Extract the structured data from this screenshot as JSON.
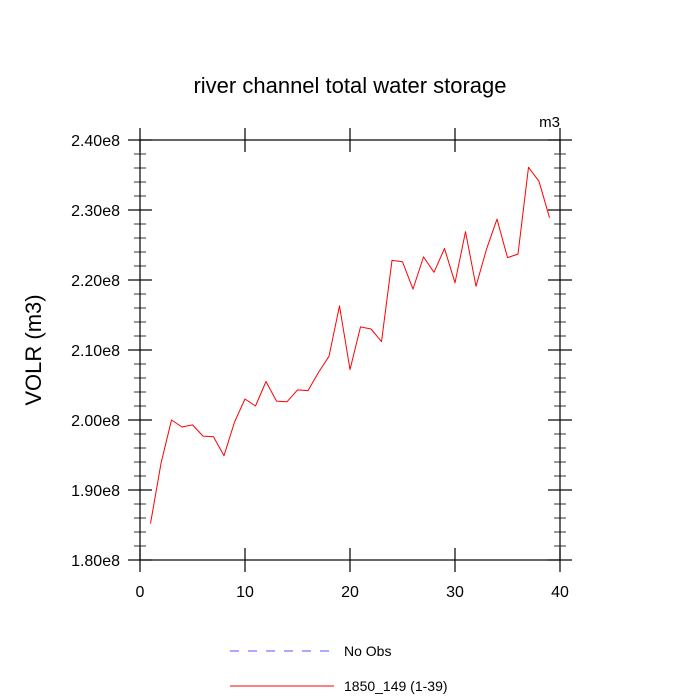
{
  "chart_data": {
    "type": "line",
    "title": "river channel total water storage",
    "units_label": "m3",
    "ylabel": "VOLR  (m3)",
    "xlabel": "",
    "xlim": [
      0,
      40
    ],
    "ylim": [
      180000000,
      240000000
    ],
    "x_ticks": [
      0,
      10,
      20,
      30,
      40
    ],
    "x_tick_labels": [
      "0",
      "10",
      "20",
      "30",
      "40"
    ],
    "y_ticks": [
      180000000,
      190000000,
      200000000,
      210000000,
      220000000,
      230000000,
      240000000
    ],
    "y_tick_labels": [
      "1.80e8",
      "1.90e8",
      "2.00e8",
      "2.10e8",
      "2.20e8",
      "2.30e8",
      "2.40e8"
    ],
    "grid": false,
    "legend_position": "bottom-center",
    "legend": [
      {
        "label": "No Obs",
        "color": "#5555ff",
        "style": "dashed"
      },
      {
        "label": "1850_149 (1-39)",
        "color": "#ff0000",
        "style": "solid"
      }
    ],
    "series": [
      {
        "name": "1850_149 (1-39)",
        "color": "#ff0000",
        "x": [
          1,
          2,
          3,
          4,
          5,
          6,
          7,
          8,
          9,
          10,
          11,
          12,
          13,
          14,
          15,
          16,
          17,
          18,
          19,
          20,
          21,
          22,
          23,
          24,
          25,
          26,
          27,
          28,
          29,
          30,
          31,
          32,
          33,
          34,
          35,
          36,
          37,
          38,
          39
        ],
        "values": [
          185200000,
          193800000,
          200000000,
          199000000,
          199300000,
          197700000,
          197600000,
          194900000,
          199700000,
          203000000,
          202000000,
          205500000,
          202700000,
          202600000,
          204300000,
          204200000,
          206800000,
          209100000,
          216300000,
          207200000,
          213300000,
          213000000,
          211200000,
          222800000,
          222600000,
          218700000,
          223300000,
          221100000,
          224500000,
          219600000,
          226900000,
          219100000,
          224400000,
          228700000,
          223200000,
          223700000,
          236100000,
          234100000,
          228900000
        ]
      }
    ]
  }
}
